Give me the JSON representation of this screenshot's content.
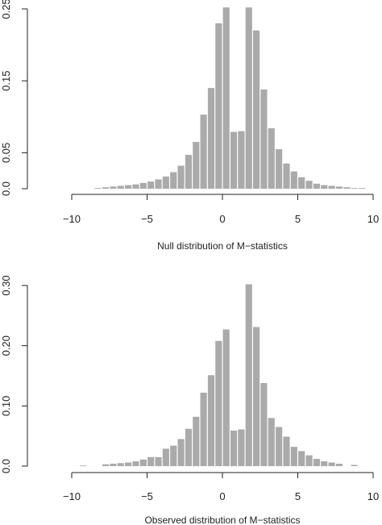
{
  "colors": {
    "bar": "#aaaaaa",
    "axis": "#222222",
    "background": "#ffffff"
  },
  "chart_data": [
    {
      "type": "bar",
      "title": "",
      "xlabel": "Null distribution of M−statistics",
      "ylabel": "",
      "xlim": [
        -10,
        10
      ],
      "ylim": [
        0,
        0.25
      ],
      "grid": false,
      "xticks": [
        -10,
        -5,
        0,
        5,
        10
      ],
      "xtick_labels": [
        "−10",
        "−5",
        "0",
        "5",
        "10"
      ],
      "yticks": [
        0.0,
        0.05,
        0.15,
        0.25
      ],
      "ytick_labels": [
        "0.0",
        "0.05",
        "0.15",
        "0.25"
      ],
      "bins": [
        -8.5,
        -8,
        -7.5,
        -7,
        -6.5,
        -6,
        -5.5,
        -5,
        -4.5,
        -4,
        -3.5,
        -3,
        -2.5,
        -2,
        -1.5,
        -1,
        -0.5,
        0,
        0.5,
        1,
        1.5,
        2,
        2.5,
        3,
        3.5,
        4,
        4.5,
        5,
        5.5,
        6,
        6.5,
        7,
        7.5,
        8,
        8.5,
        9
      ],
      "values": [
        0.001,
        0.002,
        0.003,
        0.004,
        0.005,
        0.006,
        0.008,
        0.01,
        0.013,
        0.017,
        0.023,
        0.032,
        0.047,
        0.065,
        0.103,
        0.14,
        0.23,
        0.252,
        0.079,
        0.08,
        0.252,
        0.22,
        0.138,
        0.084,
        0.055,
        0.035,
        0.024,
        0.016,
        0.011,
        0.007,
        0.005,
        0.004,
        0.003,
        0.002,
        0.001,
        0.001
      ]
    },
    {
      "type": "bar",
      "title": "",
      "xlabel": "Observed distribution of M−statistics",
      "ylabel": "",
      "xlim": [
        -10,
        10
      ],
      "ylim": [
        0,
        0.3
      ],
      "grid": false,
      "xticks": [
        -10,
        -5,
        0,
        5,
        10
      ],
      "xtick_labels": [
        "−10",
        "−5",
        "0",
        "5",
        "10"
      ],
      "yticks": [
        0.0,
        0.1,
        0.2,
        0.3
      ],
      "ytick_labels": [
        "0.0",
        "0.10",
        "0.20",
        "0.30"
      ],
      "bins": [
        -9.5,
        -8,
        -7.5,
        -7,
        -6.5,
        -6,
        -5.5,
        -5,
        -4.5,
        -4,
        -3.5,
        -3,
        -2.5,
        -2,
        -1.5,
        -1,
        -0.5,
        0,
        0.5,
        1,
        1.5,
        2,
        2.5,
        3,
        3.5,
        4,
        4.5,
        5,
        5.5,
        6,
        6.5,
        7,
        7.5,
        8.5
      ],
      "values": [
        0.001,
        0.003,
        0.004,
        0.005,
        0.006,
        0.008,
        0.011,
        0.015,
        0.015,
        0.029,
        0.034,
        0.045,
        0.062,
        0.082,
        0.122,
        0.151,
        0.208,
        0.227,
        0.059,
        0.061,
        0.302,
        0.231,
        0.138,
        0.08,
        0.065,
        0.049,
        0.032,
        0.025,
        0.018,
        0.012,
        0.008,
        0.006,
        0.004,
        0.002
      ]
    }
  ]
}
